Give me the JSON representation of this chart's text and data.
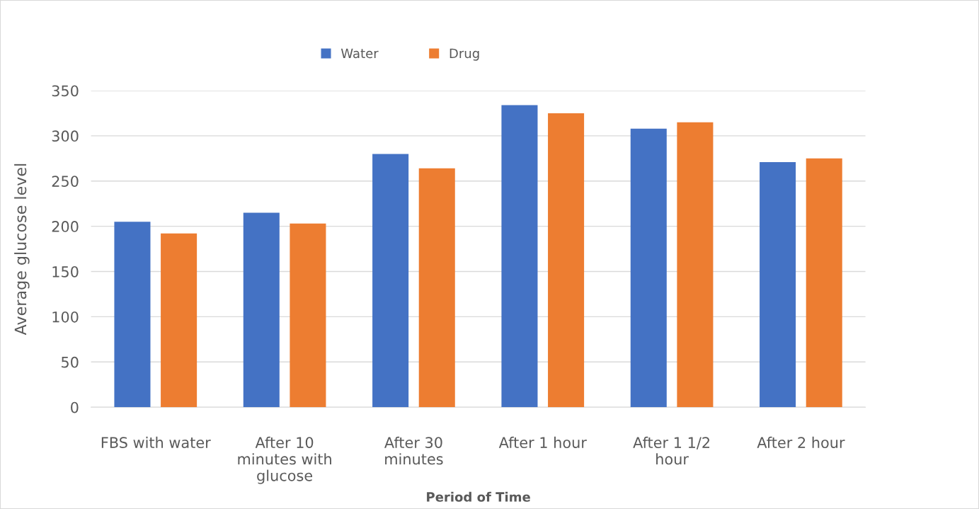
{
  "chart_data": {
    "type": "bar",
    "xlabel": "Period of Time",
    "ylabel": "Average glucose level",
    "categories": [
      "FBS with water",
      "After 10 minutes with glucose",
      "After 30 minutes",
      "After 1 hour",
      "After 1 1/2 hour",
      "After 2 hour"
    ],
    "series": [
      {
        "name": "Water",
        "color": "#4472c4",
        "values": [
          205,
          215,
          280,
          334,
          308,
          271
        ]
      },
      {
        "name": "Drug",
        "color": "#ed7d31",
        "values": [
          192,
          203,
          264,
          325,
          315,
          275
        ]
      }
    ],
    "ylim": [
      0,
      350
    ],
    "yticks": [
      0,
      50,
      100,
      150,
      200,
      250,
      300,
      350
    ],
    "grid": "y",
    "legend": "top"
  }
}
